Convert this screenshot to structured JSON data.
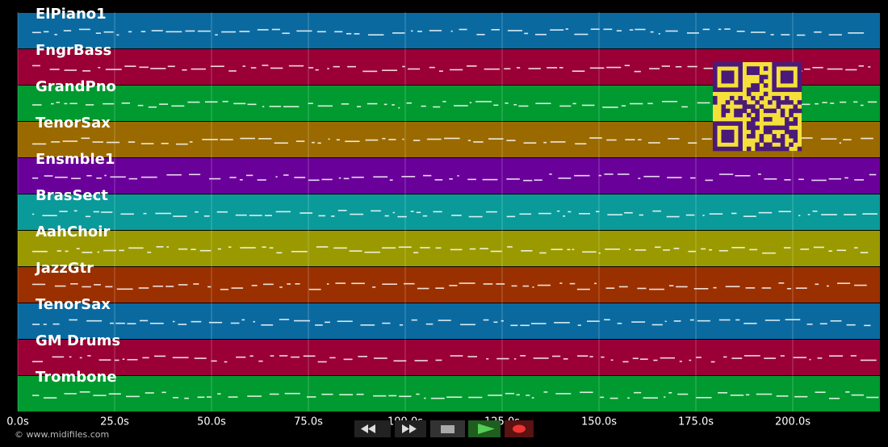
{
  "tracks": [
    {
      "name": "ElPiano1",
      "color": "#0a6aa0"
    },
    {
      "name": "FngrBass",
      "color": "#9a0035"
    },
    {
      "name": "GrandPno",
      "color": "#009a30"
    },
    {
      "name": "TenorSax",
      "color": "#9a6a00"
    },
    {
      "name": "Ensmble1",
      "color": "#6a009a"
    },
    {
      "name": "BrasSect",
      "color": "#0a9a9a"
    },
    {
      "name": "AahChoir",
      "color": "#9a9a00"
    },
    {
      "name": "JazzGtr",
      "color": "#9a3000"
    },
    {
      "name": "TenorSax",
      "color": "#0a6aa0"
    },
    {
      "name": "GM Drums",
      "color": "#9a0035"
    },
    {
      "name": "Trombone",
      "color": "#009a30"
    }
  ],
  "time_axis": {
    "xlim": [
      0,
      222.5
    ],
    "xticks": [
      {
        "value": 0,
        "label": "0.0s"
      },
      {
        "value": 25,
        "label": "25.0s"
      },
      {
        "value": 50,
        "label": "50.0s"
      },
      {
        "value": 75,
        "label": "75.0s"
      },
      {
        "value": 100,
        "label": "100.0s"
      },
      {
        "value": 125,
        "label": "125.0s"
      },
      {
        "value": 150,
        "label": "150.0s"
      },
      {
        "value": 175,
        "label": "175.0s"
      },
      {
        "value": 200,
        "label": "200.0s"
      }
    ]
  },
  "footer": {
    "copyright": "© www.midifiles.com"
  }
}
